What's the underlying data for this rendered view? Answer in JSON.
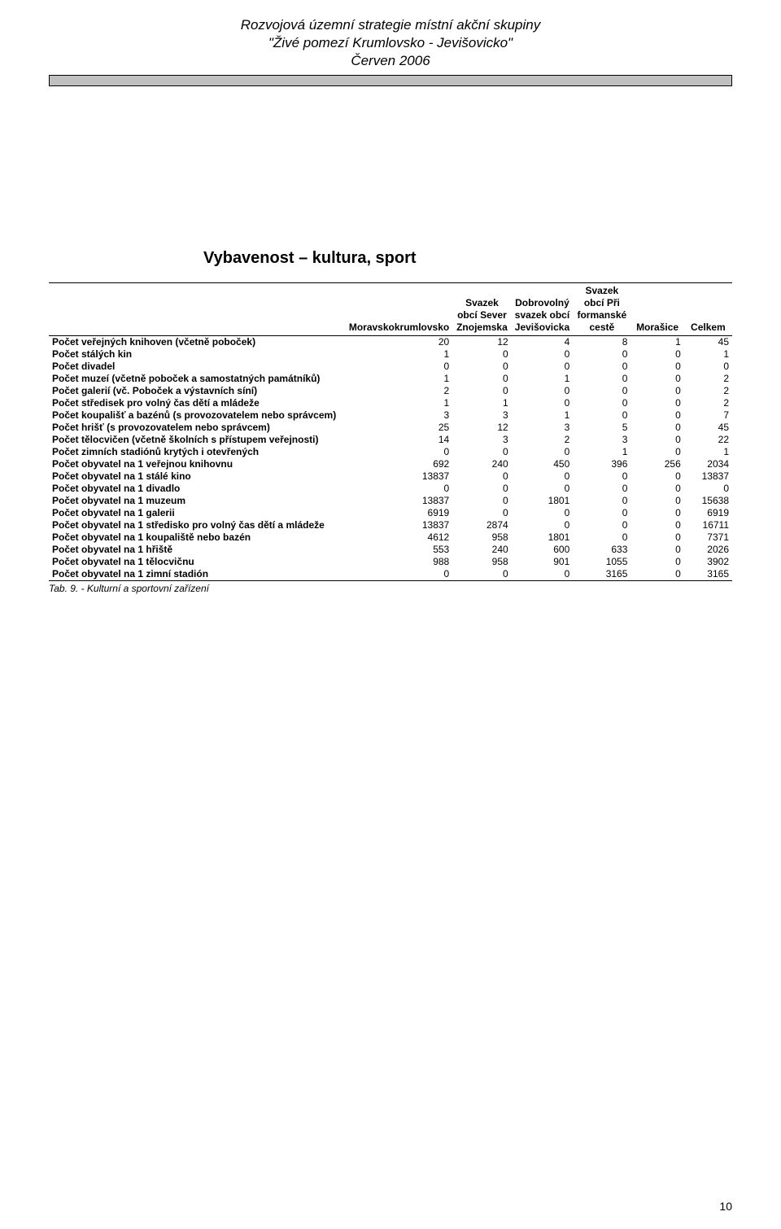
{
  "header": {
    "line1": "Rozvojová územní strategie místní akční skupiny",
    "line2": "\"Živé pomezí Krumlovsko - Jevišovicko\"",
    "line3": "Červen 2006"
  },
  "section_title": "Vybavenost – kultura, sport",
  "table": {
    "columns": [
      "",
      "Moravskokrumlovsko",
      "Svazek obcí Sever Znojemska",
      "Dobrovolný svazek obcí Jevišovicka",
      "Svazek obcí Při formanské cestě",
      "Morašice",
      "Celkem"
    ],
    "rows": [
      {
        "label": "Počet veřejných knihoven (včetně poboček)",
        "vals": [
          20,
          12,
          4,
          8,
          1,
          45
        ]
      },
      {
        "label": "Počet stálých kin",
        "vals": [
          1,
          0,
          0,
          0,
          0,
          1
        ]
      },
      {
        "label": "Počet divadel",
        "vals": [
          0,
          0,
          0,
          0,
          0,
          0
        ]
      },
      {
        "label": "Počet muzeí (včetně poboček a samostatných památníků)",
        "vals": [
          1,
          0,
          1,
          0,
          0,
          2
        ]
      },
      {
        "label": "Počet galerií (vč. Poboček a výstavních síní)",
        "vals": [
          2,
          0,
          0,
          0,
          0,
          2
        ]
      },
      {
        "label": "Počet středisek pro volný čas dětí a mládeže",
        "vals": [
          1,
          1,
          0,
          0,
          0,
          2
        ]
      },
      {
        "label": "Počet koupališť a bazénů (s provozovatelem nebo správcem)",
        "vals": [
          3,
          3,
          1,
          0,
          0,
          7
        ]
      },
      {
        "label": "Počet hrišť (s provozovatelem nebo správcem)",
        "vals": [
          25,
          12,
          3,
          5,
          0,
          45
        ]
      },
      {
        "label": "Počet tělocvičen (včetně školních s přístupem veřejnosti)",
        "vals": [
          14,
          3,
          2,
          3,
          0,
          22
        ]
      },
      {
        "label": "Počet zimních stadiónů krytých i otevřených",
        "vals": [
          0,
          0,
          0,
          1,
          0,
          1
        ]
      },
      {
        "label": "Počet obyvatel na 1 veřejnou knihovnu",
        "vals": [
          692,
          240,
          450,
          396,
          256,
          2034
        ]
      },
      {
        "label": "Počet obyvatel na 1 stálé kino",
        "vals": [
          13837,
          0,
          0,
          0,
          0,
          13837
        ]
      },
      {
        "label": "Počet obyvatel na 1 divadlo",
        "vals": [
          0,
          0,
          0,
          0,
          0,
          0
        ]
      },
      {
        "label": "Počet obyvatel na 1 muzeum",
        "vals": [
          13837,
          0,
          1801,
          0,
          0,
          15638
        ]
      },
      {
        "label": "Počet obyvatel na 1 galerii",
        "vals": [
          6919,
          0,
          0,
          0,
          0,
          6919
        ]
      },
      {
        "label": "Počet obyvatel na 1 středisko pro volný čas dětí a mládeže",
        "vals": [
          13837,
          2874,
          0,
          0,
          0,
          16711
        ]
      },
      {
        "label": "Počet obyvatel na 1 koupaliště nebo bazén",
        "vals": [
          4612,
          958,
          1801,
          0,
          0,
          7371
        ]
      },
      {
        "label": "Počet obyvatel na 1 hřiště",
        "vals": [
          553,
          240,
          600,
          633,
          0,
          2026
        ]
      },
      {
        "label": "Počet obyvatel na 1 tělocvičnu",
        "vals": [
          988,
          958,
          901,
          1055,
          0,
          3902
        ]
      },
      {
        "label": "Počet obyvatel na 1 zimní stadión",
        "vals": [
          0,
          0,
          0,
          3165,
          0,
          3165
        ]
      }
    ]
  },
  "caption": "Tab. 9. - Kulturní a sportovní zařízení",
  "page_number": "10"
}
